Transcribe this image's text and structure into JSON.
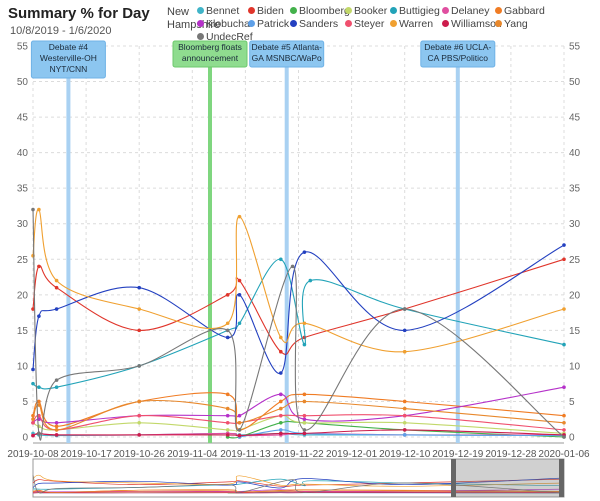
{
  "header": {
    "title": "Summary % for Day",
    "date_range": "10/8/2019 - 1/6/2020",
    "state_lines": [
      "New",
      "Hampshire"
    ]
  },
  "chart_data": {
    "type": "line",
    "title": "Summary % for Day",
    "xlabel": "",
    "ylabel": "",
    "ylim": [
      0,
      55
    ],
    "y_ticks": [
      0,
      5,
      10,
      15,
      20,
      25,
      30,
      35,
      40,
      45,
      50,
      55
    ],
    "x_range": [
      "2019-10-08",
      "2020-01-06"
    ],
    "x_ticks": [
      "2019-10-08",
      "2019-10-17",
      "2019-10-26",
      "2019-11-04",
      "2019-11-13",
      "2019-11-22",
      "2019-12-01",
      "2019-12-10",
      "2019-12-19",
      "2019-12-28",
      "2020-01-06"
    ],
    "grid": true,
    "legend_position": "top",
    "events": [
      {
        "date": "2019-10-14",
        "label_lines": [
          "Debate #4",
          "Westerville-OH",
          "NYT/CNN"
        ],
        "kind": "debate"
      },
      {
        "date": "2019-11-07",
        "label_lines": [
          "Bloomberg floats",
          "announcement"
        ],
        "kind": "announcement"
      },
      {
        "date": "2019-11-20",
        "label_lines": [
          "Debate #5 Atlanta-",
          "GA MSNBC/WaPo"
        ],
        "kind": "debate"
      },
      {
        "date": "2019-12-19",
        "label_lines": [
          "Debate #6 UCLA-",
          "CA PBS/Politico"
        ],
        "kind": "debate"
      }
    ],
    "series": [
      {
        "name": "Bennet",
        "color": "#40b4c8",
        "points": [
          [
            "2019-10-08",
            0.5
          ],
          [
            "2019-10-09",
            0.3
          ],
          [
            "2019-10-12",
            0.2
          ],
          [
            "2019-10-26",
            0.3
          ],
          [
            "2019-11-10",
            0.5
          ],
          [
            "2019-11-12",
            0.3
          ],
          [
            "2019-11-19",
            0.5
          ],
          [
            "2019-11-23",
            0.3
          ],
          [
            "2019-12-10",
            0.3
          ],
          [
            "2020-01-06",
            0.2
          ]
        ]
      },
      {
        "name": "Biden",
        "color": "#e0352b",
        "points": [
          [
            "2019-10-08",
            18
          ],
          [
            "2019-10-09",
            24
          ],
          [
            "2019-10-12",
            21
          ],
          [
            "2019-10-26",
            15
          ],
          [
            "2019-11-10",
            20
          ],
          [
            "2019-11-12",
            22
          ],
          [
            "2019-11-19",
            12
          ],
          [
            "2019-11-23",
            14
          ],
          [
            "2019-12-10",
            18
          ],
          [
            "2020-01-06",
            25
          ]
        ]
      },
      {
        "name": "Bloomberg",
        "color": "#43b14b",
        "points": [
          [
            "2019-11-10",
            0
          ],
          [
            "2019-11-12",
            0
          ],
          [
            "2019-11-19",
            2
          ],
          [
            "2019-11-23",
            2
          ],
          [
            "2019-12-10",
            1
          ],
          [
            "2020-01-06",
            0
          ]
        ]
      },
      {
        "name": "Booker",
        "color": "#c2d86a",
        "points": [
          [
            "2019-10-08",
            2
          ],
          [
            "2019-10-09",
            1.5
          ],
          [
            "2019-10-12",
            1
          ],
          [
            "2019-10-26",
            2
          ],
          [
            "2019-11-10",
            1
          ],
          [
            "2019-11-12",
            1
          ],
          [
            "2019-11-19",
            3
          ],
          [
            "2019-11-23",
            2
          ],
          [
            "2019-12-10",
            2
          ],
          [
            "2020-01-06",
            0.5
          ]
        ]
      },
      {
        "name": "Buttigieg",
        "color": "#22a3b8",
        "points": [
          [
            "2019-10-08",
            7.5
          ],
          [
            "2019-10-09",
            7
          ],
          [
            "2019-10-12",
            7
          ],
          [
            "2019-10-26",
            10
          ],
          [
            "2019-11-10",
            15
          ],
          [
            "2019-11-12",
            16
          ],
          [
            "2019-11-19",
            25
          ],
          [
            "2019-11-23",
            13
          ],
          [
            "2019-11-24",
            22
          ],
          [
            "2019-12-10",
            18
          ],
          [
            "2020-01-06",
            13
          ]
        ]
      },
      {
        "name": "Delaney",
        "color": "#e04fa0",
        "points": [
          [
            "2019-10-08",
            0.2
          ],
          [
            "2019-10-09",
            0.5
          ],
          [
            "2019-10-12",
            0.3
          ],
          [
            "2019-10-26",
            0.3
          ],
          [
            "2019-11-10",
            0.5
          ],
          [
            "2019-11-12",
            0.2
          ],
          [
            "2019-11-19",
            0.3
          ],
          [
            "2019-11-23",
            0.5
          ],
          [
            "2019-12-10",
            0.3
          ],
          [
            "2020-01-06",
            0.3
          ]
        ]
      },
      {
        "name": "Gabbard",
        "color": "#f07c24",
        "points": [
          [
            "2019-10-08",
            3
          ],
          [
            "2019-10-09",
            5
          ],
          [
            "2019-10-12",
            1.5
          ],
          [
            "2019-10-26",
            5
          ],
          [
            "2019-11-10",
            6
          ],
          [
            "2019-11-12",
            1
          ],
          [
            "2019-11-19",
            5
          ],
          [
            "2019-11-23",
            6
          ],
          [
            "2019-12-10",
            5
          ],
          [
            "2020-01-06",
            3
          ]
        ]
      },
      {
        "name": "Klobuchar",
        "color": "#b531c9",
        "points": [
          [
            "2019-10-08",
            2
          ],
          [
            "2019-10-09",
            2.5
          ],
          [
            "2019-10-12",
            2
          ],
          [
            "2019-10-26",
            3
          ],
          [
            "2019-11-10",
            3
          ],
          [
            "2019-11-12",
            3
          ],
          [
            "2019-11-19",
            6
          ],
          [
            "2019-11-23",
            2.5
          ],
          [
            "2019-12-10",
            3
          ],
          [
            "2020-01-06",
            7
          ]
        ]
      },
      {
        "name": "Patrick",
        "color": "#5ea0e8",
        "points": [
          [
            "2019-11-12",
            0
          ],
          [
            "2019-11-19",
            1
          ],
          [
            "2019-11-23",
            0.5
          ],
          [
            "2019-12-10",
            0.3
          ],
          [
            "2020-01-06",
            0.2
          ]
        ]
      },
      {
        "name": "Sanders",
        "color": "#2340c0",
        "points": [
          [
            "2019-10-08",
            9.5
          ],
          [
            "2019-10-09",
            17
          ],
          [
            "2019-10-12",
            18
          ],
          [
            "2019-10-26",
            21
          ],
          [
            "2019-11-10",
            14
          ],
          [
            "2019-11-12",
            20
          ],
          [
            "2019-11-19",
            9
          ],
          [
            "2019-11-23",
            26
          ],
          [
            "2019-12-10",
            15
          ],
          [
            "2020-01-06",
            27
          ]
        ]
      },
      {
        "name": "Steyer",
        "color": "#f0506e",
        "points": [
          [
            "2019-10-08",
            2
          ],
          [
            "2019-10-09",
            3
          ],
          [
            "2019-10-12",
            1
          ],
          [
            "2019-10-26",
            3
          ],
          [
            "2019-11-10",
            2
          ],
          [
            "2019-11-12",
            2
          ],
          [
            "2019-11-19",
            3
          ],
          [
            "2019-11-23",
            3
          ],
          [
            "2019-12-10",
            3
          ],
          [
            "2020-01-06",
            1
          ]
        ]
      },
      {
        "name": "Warren",
        "color": "#f0a030",
        "points": [
          [
            "2019-10-08",
            25.5
          ],
          [
            "2019-10-09",
            32
          ],
          [
            "2019-10-12",
            22
          ],
          [
            "2019-10-26",
            18
          ],
          [
            "2019-11-10",
            16
          ],
          [
            "2019-11-12",
            31
          ],
          [
            "2019-11-19",
            14
          ],
          [
            "2019-11-23",
            16
          ],
          [
            "2019-12-10",
            12
          ],
          [
            "2020-01-06",
            18
          ]
        ]
      },
      {
        "name": "Williamson",
        "color": "#cc1c4c",
        "points": [
          [
            "2019-10-08",
            0.2
          ],
          [
            "2019-10-09",
            0.5
          ],
          [
            "2019-10-12",
            0.3
          ],
          [
            "2019-10-26",
            0.3
          ],
          [
            "2019-11-10",
            0.3
          ],
          [
            "2019-11-12",
            0.2
          ],
          [
            "2019-11-19",
            0.5
          ],
          [
            "2019-11-23",
            0.5
          ],
          [
            "2019-12-10",
            1
          ],
          [
            "2020-01-06",
            0.3
          ]
        ]
      },
      {
        "name": "Yang",
        "color": "#e8882c",
        "points": [
          [
            "2019-10-08",
            2.5
          ],
          [
            "2019-10-09",
            4.5
          ],
          [
            "2019-10-12",
            1
          ],
          [
            "2019-10-26",
            5
          ],
          [
            "2019-11-10",
            4
          ],
          [
            "2019-11-12",
            2
          ],
          [
            "2019-11-19",
            4
          ],
          [
            "2019-11-23",
            5
          ],
          [
            "2019-12-10",
            4
          ],
          [
            "2020-01-06",
            2
          ]
        ]
      },
      {
        "name": "UndecRef",
        "color": "#777777",
        "points": [
          [
            "2019-10-08",
            32
          ],
          [
            "2019-10-09",
            0.5
          ],
          [
            "2019-10-12",
            8
          ],
          [
            "2019-10-26",
            10
          ],
          [
            "2019-11-10",
            15
          ],
          [
            "2019-11-12",
            1
          ],
          [
            "2019-11-21",
            24
          ],
          [
            "2019-11-23",
            1
          ],
          [
            "2019-12-10",
            18
          ],
          [
            "2020-01-06",
            0
          ]
        ]
      }
    ]
  }
}
